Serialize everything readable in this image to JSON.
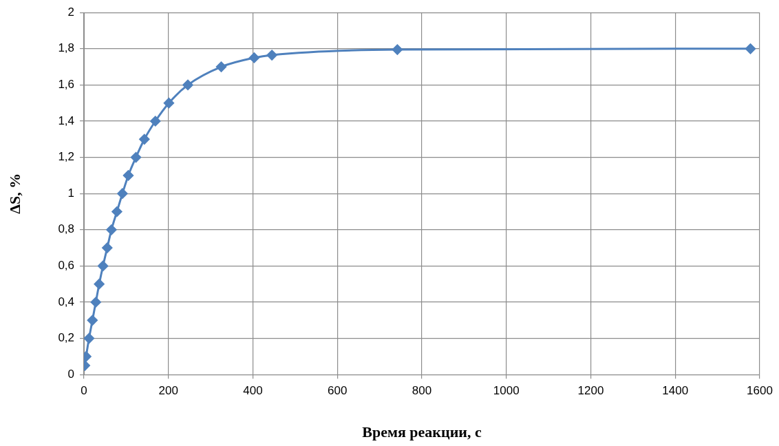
{
  "chart_data": {
    "type": "line",
    "xlabel": "Время реакции, с",
    "ylabel": "ΔS, %",
    "series": [
      {
        "color": "#4f81bd",
        "x": [
          2,
          5,
          12,
          20,
          28,
          36,
          45,
          55,
          65,
          78,
          91,
          105,
          123,
          143,
          169,
          201,
          246,
          325,
          403,
          445,
          742,
          1578
        ],
        "values": [
          0.05,
          0.1,
          0.2,
          0.3,
          0.4,
          0.5,
          0.6,
          0.7,
          0.8,
          0.9,
          1.0,
          1.1,
          1.2,
          1.3,
          1.4,
          1.5,
          1.6,
          1.7,
          1.75,
          1.765,
          1.795,
          1.8
        ]
      }
    ],
    "xlim": [
      0,
      1600
    ],
    "xticks": [
      0,
      200,
      400,
      600,
      800,
      1000,
      1200,
      1400,
      1600
    ],
    "ylim": [
      0,
      2
    ],
    "yticks": [
      0,
      {
        "value": 0.2,
        "label": "0,2"
      },
      {
        "value": 0.4,
        "label": "0,4"
      },
      {
        "value": 0.6,
        "label": "0,6"
      },
      {
        "value": 0.8,
        "label": "0,8"
      },
      1,
      {
        "value": 1.2,
        "label": "1,2"
      },
      {
        "value": 1.4,
        "label": "1,4"
      },
      {
        "value": 1.6,
        "label": "1,6"
      },
      {
        "value": 1.8,
        "label": "1,8"
      },
      2
    ],
    "grid": true,
    "legend": false,
    "marker": "diamond",
    "line_style": "solid"
  }
}
